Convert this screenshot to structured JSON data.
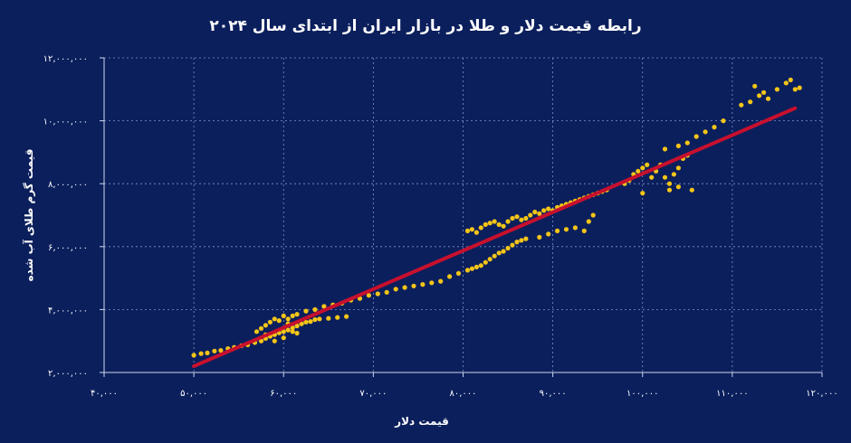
{
  "chart_data": {
    "type": "scatter",
    "title": "رابطه قیمت دلار و طلا در بازار ایران از ابتدای سال ۲۰۲۴",
    "xlabel": "قیمت دلار",
    "ylabel": "قیمت گرم طلای آب شده",
    "xlim": [
      40000,
      120000
    ],
    "ylim": [
      2000000,
      12000000
    ],
    "x_ticks": [
      40000,
      50000,
      60000,
      70000,
      80000,
      90000,
      100000,
      110000,
      120000
    ],
    "x_tick_labels": [
      "۴۰,۰۰۰",
      "۵۰,۰۰۰",
      "۶۰,۰۰۰",
      "۷۰,۰۰۰",
      "۸۰,۰۰۰",
      "۹۰,۰۰۰",
      "۱۰۰,۰۰۰",
      "۱۱۰,۰۰۰",
      "۱۲۰,۰۰۰"
    ],
    "y_ticks": [
      2000000,
      4000000,
      6000000,
      8000000,
      10000000,
      12000000
    ],
    "y_tick_labels": [
      "۲,۰۰۰,۰۰۰",
      "۴,۰۰۰,۰۰۰",
      "۶,۰۰۰,۰۰۰",
      "۸,۰۰۰,۰۰۰",
      "۱۰,۰۰۰,۰۰۰",
      "۱۲,۰۰۰,۰۰۰"
    ],
    "grid": true,
    "series": [
      {
        "color": "#f5c518",
        "points": [
          [
            50000,
            2550000
          ],
          [
            50800,
            2600000
          ],
          [
            51500,
            2620000
          ],
          [
            52300,
            2680000
          ],
          [
            53000,
            2700000
          ],
          [
            53800,
            2760000
          ],
          [
            54500,
            2800000
          ],
          [
            55300,
            2850000
          ],
          [
            56000,
            2880000
          ],
          [
            56800,
            2950000
          ],
          [
            57500,
            3000000
          ],
          [
            58000,
            3080000
          ],
          [
            58500,
            3150000
          ],
          [
            59000,
            3200000
          ],
          [
            59500,
            3260000
          ],
          [
            60000,
            3300000
          ],
          [
            60500,
            3350000
          ],
          [
            61000,
            3420000
          ],
          [
            61500,
            3480000
          ],
          [
            62000,
            3550000
          ],
          [
            62500,
            3600000
          ],
          [
            63000,
            3620000
          ],
          [
            63500,
            3680000
          ],
          [
            64000,
            3700000
          ],
          [
            65000,
            3720000
          ],
          [
            66000,
            3750000
          ],
          [
            67000,
            3780000
          ],
          [
            57000,
            3300000
          ],
          [
            57500,
            3400000
          ],
          [
            58000,
            3500000
          ],
          [
            58500,
            3600000
          ],
          [
            59000,
            3700000
          ],
          [
            59500,
            3650000
          ],
          [
            60000,
            3800000
          ],
          [
            60500,
            3550000
          ],
          [
            61000,
            3300000
          ],
          [
            61500,
            3250000
          ],
          [
            59000,
            3000000
          ],
          [
            58000,
            3200000
          ],
          [
            60000,
            3100000
          ],
          [
            60500,
            3700000
          ],
          [
            61000,
            3800000
          ],
          [
            61500,
            3850000
          ],
          [
            62500,
            3950000
          ],
          [
            63500,
            4000000
          ],
          [
            64500,
            4100000
          ],
          [
            65500,
            4150000
          ],
          [
            66500,
            4200000
          ],
          [
            67500,
            4300000
          ],
          [
            68500,
            4350000
          ],
          [
            69500,
            4450000
          ],
          [
            70500,
            4500000
          ],
          [
            71500,
            4550000
          ],
          [
            72500,
            4650000
          ],
          [
            73500,
            4700000
          ],
          [
            74500,
            4750000
          ],
          [
            75500,
            4800000
          ],
          [
            76500,
            4850000
          ],
          [
            77500,
            4900000
          ],
          [
            78500,
            5050000
          ],
          [
            79500,
            5150000
          ],
          [
            80500,
            5250000
          ],
          [
            81000,
            5300000
          ],
          [
            81500,
            5350000
          ],
          [
            82000,
            5400000
          ],
          [
            82500,
            5500000
          ],
          [
            83000,
            5600000
          ],
          [
            83500,
            5700000
          ],
          [
            84000,
            5800000
          ],
          [
            84500,
            5850000
          ],
          [
            85000,
            5950000
          ],
          [
            85500,
            6050000
          ],
          [
            86000,
            6150000
          ],
          [
            86500,
            6200000
          ],
          [
            87000,
            6250000
          ],
          [
            80500,
            6500000
          ],
          [
            81000,
            6550000
          ],
          [
            81500,
            6450000
          ],
          [
            82000,
            6600000
          ],
          [
            82500,
            6700000
          ],
          [
            83000,
            6750000
          ],
          [
            83500,
            6800000
          ],
          [
            84000,
            6700000
          ],
          [
            84500,
            6650000
          ],
          [
            85000,
            6800000
          ],
          [
            85500,
            6900000
          ],
          [
            86000,
            6950000
          ],
          [
            86500,
            6850000
          ],
          [
            87000,
            6900000
          ],
          [
            87500,
            7000000
          ],
          [
            88000,
            7100000
          ],
          [
            88500,
            7050000
          ],
          [
            89000,
            7150000
          ],
          [
            89500,
            7200000
          ],
          [
            90000,
            7150000
          ],
          [
            90500,
            7250000
          ],
          [
            91000,
            7300000
          ],
          [
            91500,
            7350000
          ],
          [
            92000,
            7400000
          ],
          [
            92500,
            7450000
          ],
          [
            93000,
            7500000
          ],
          [
            93500,
            7550000
          ],
          [
            94000,
            7600000
          ],
          [
            94500,
            7650000
          ],
          [
            95000,
            7700000
          ],
          [
            95500,
            7750000
          ],
          [
            96000,
            7800000
          ],
          [
            88500,
            6300000
          ],
          [
            89500,
            6400000
          ],
          [
            90500,
            6500000
          ],
          [
            91500,
            6550000
          ],
          [
            92500,
            6600000
          ],
          [
            93500,
            6500000
          ],
          [
            94000,
            6800000
          ],
          [
            94500,
            7000000
          ],
          [
            98000,
            8000000
          ],
          [
            98500,
            8100000
          ],
          [
            99000,
            8300000
          ],
          [
            99500,
            8400000
          ],
          [
            100000,
            8500000
          ],
          [
            100500,
            8600000
          ],
          [
            100000,
            7700000
          ],
          [
            101000,
            8200000
          ],
          [
            101500,
            8400000
          ],
          [
            102000,
            8600000
          ],
          [
            102500,
            8200000
          ],
          [
            103000,
            8000000
          ],
          [
            103500,
            8300000
          ],
          [
            104000,
            8500000
          ],
          [
            104500,
            8800000
          ],
          [
            105000,
            8900000
          ],
          [
            103000,
            7800000
          ],
          [
            104000,
            7900000
          ],
          [
            105500,
            7800000
          ],
          [
            102500,
            9100000
          ],
          [
            104000,
            9200000
          ],
          [
            105000,
            9300000
          ],
          [
            106000,
            9500000
          ],
          [
            107000,
            9650000
          ],
          [
            108000,
            9800000
          ],
          [
            109000,
            10000000
          ],
          [
            111000,
            10500000
          ],
          [
            112000,
            10600000
          ],
          [
            113000,
            10800000
          ],
          [
            112500,
            11100000
          ],
          [
            113500,
            10900000
          ],
          [
            114000,
            10700000
          ],
          [
            115000,
            11000000
          ],
          [
            116000,
            11200000
          ],
          [
            116500,
            11300000
          ],
          [
            117000,
            11000000
          ],
          [
            117500,
            11050000
          ]
        ]
      }
    ],
    "trendline": {
      "color": "#c8102e",
      "from": [
        50000,
        2200000
      ],
      "to": [
        117000,
        10400000
      ]
    }
  }
}
